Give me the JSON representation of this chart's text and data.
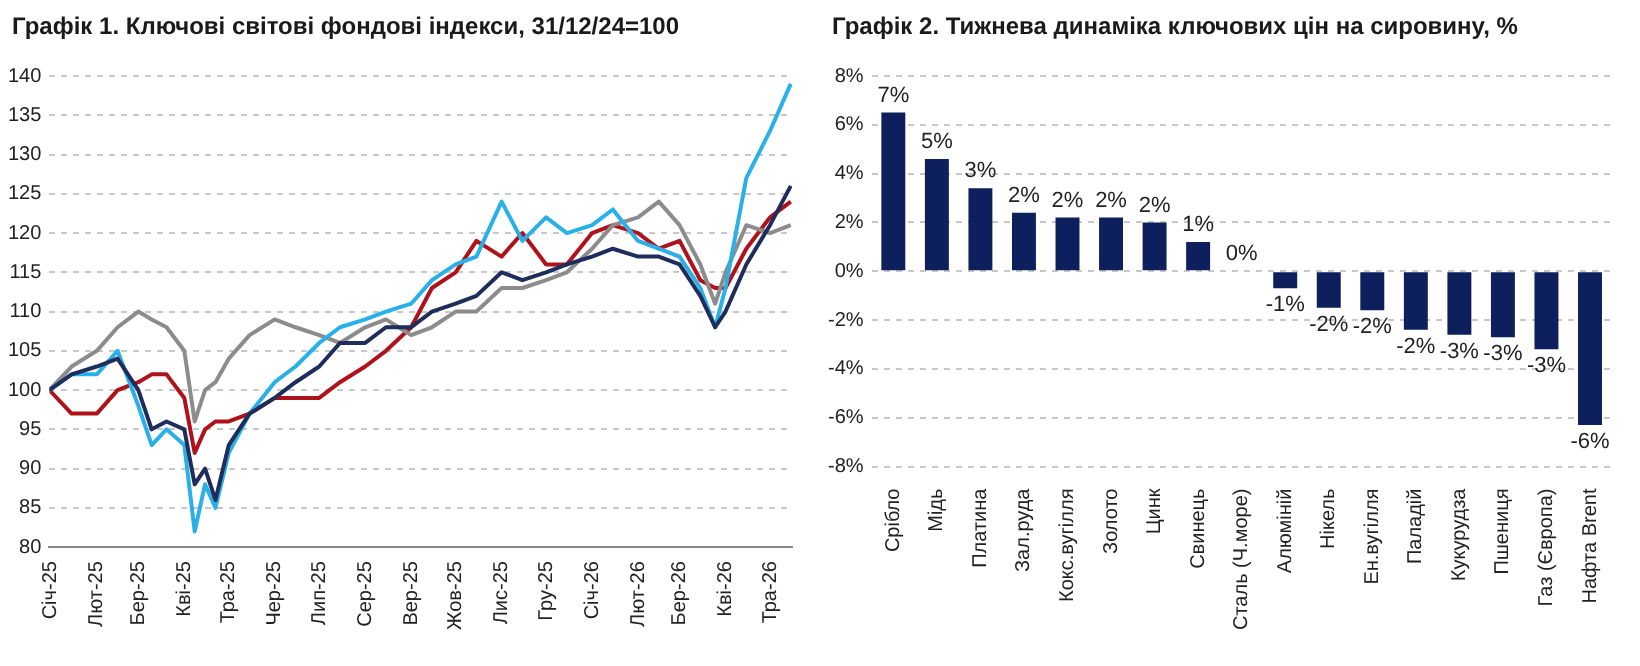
{
  "chart_data": [
    {
      "type": "line",
      "title": "Графік 1. Ключові світові фондові індекси, 31/12/24=100",
      "grid": "y",
      "xlim": [
        "2024-12-31",
        "2026-05-16"
      ],
      "ylim": [
        80,
        140
      ],
      "yticks": [
        80,
        85,
        90,
        95,
        100,
        105,
        110,
        115,
        120,
        125,
        130,
        135,
        140
      ],
      "xticks": [
        {
          "value": "2025-01-01",
          "label": "Січ-25"
        },
        {
          "value": "2025-02-01",
          "label": "Лют-25"
        },
        {
          "value": "2025-03-01",
          "label": "Бер-25"
        },
        {
          "value": "2025-04-01",
          "label": "Кві-25"
        },
        {
          "value": "2025-05-01",
          "label": "Тра-25"
        },
        {
          "value": "2025-06-01",
          "label": "Чер-25"
        },
        {
          "value": "2025-07-01",
          "label": "Лип-25"
        },
        {
          "value": "2025-08-01",
          "label": "Сер-25"
        },
        {
          "value": "2025-09-01",
          "label": "Вер-25"
        },
        {
          "value": "2025-10-01",
          "label": "Жов-25"
        },
        {
          "value": "2025-11-01",
          "label": "Лис-25"
        },
        {
          "value": "2025-12-01",
          "label": "Гру-25"
        },
        {
          "value": "2026-01-01",
          "label": "Січ-26"
        },
        {
          "value": "2026-02-01",
          "label": "Лют-26"
        },
        {
          "value": "2026-03-01",
          "label": "Бер-26"
        },
        {
          "value": "2026-04-01",
          "label": "Кві-26"
        },
        {
          "value": "2026-05-01",
          "label": "Тра-26"
        }
      ],
      "x": [
        "2024-12-31",
        "2025-01-15",
        "2025-02-01",
        "2025-02-15",
        "2025-03-01",
        "2025-03-10",
        "2025-03-20",
        "2025-04-01",
        "2025-04-08",
        "2025-04-15",
        "2025-04-22",
        "2025-05-01",
        "2025-05-15",
        "2025-06-01",
        "2025-06-15",
        "2025-07-01",
        "2025-07-15",
        "2025-08-01",
        "2025-08-15",
        "2025-09-01",
        "2025-09-15",
        "2025-10-01",
        "2025-10-15",
        "2025-11-01",
        "2025-11-15",
        "2025-12-01",
        "2025-12-15",
        "2026-01-01",
        "2026-01-15",
        "2026-02-01",
        "2026-02-15",
        "2026-03-01",
        "2026-03-15",
        "2026-03-25",
        "2026-04-01",
        "2026-04-15",
        "2026-05-01",
        "2026-05-15"
      ],
      "series": [
        {
          "color": "#1f2d5c",
          "values": [
            100,
            102,
            103,
            104,
            100,
            95,
            96,
            95,
            88,
            90,
            86,
            93,
            97,
            99,
            101,
            103,
            106,
            106,
            108,
            108,
            110,
            111,
            112,
            115,
            114,
            115,
            116,
            117,
            118,
            117,
            117,
            116,
            112,
            108,
            110,
            116,
            121,
            126
          ]
        },
        {
          "color": "#2ab0e8",
          "values": [
            100,
            102,
            102,
            105,
            98,
            93,
            95,
            93,
            82,
            88,
            85,
            92,
            97,
            101,
            103,
            106,
            108,
            109,
            110,
            111,
            114,
            116,
            117,
            124,
            119,
            122,
            120,
            121,
            123,
            119,
            118,
            117,
            113,
            108,
            113,
            127,
            133,
            139
          ]
        },
        {
          "color": "#8c8c8c",
          "values": [
            100,
            103,
            105,
            108,
            110,
            109,
            108,
            105,
            96,
            100,
            101,
            104,
            107,
            109,
            108,
            107,
            106,
            108,
            109,
            107,
            108,
            110,
            110,
            113,
            113,
            114,
            115,
            118,
            121,
            122,
            124,
            121,
            116,
            111,
            115,
            121,
            120,
            121
          ]
        },
        {
          "color": "#b0121b",
          "values": [
            100,
            97,
            97,
            100,
            101,
            102,
            102,
            99,
            92,
            95,
            96,
            96,
            97,
            99,
            99,
            99,
            101,
            103,
            105,
            108,
            113,
            115,
            119,
            117,
            120,
            116,
            116,
            120,
            121,
            120,
            118,
            119,
            114,
            113,
            113,
            118,
            122,
            124
          ]
        }
      ]
    },
    {
      "type": "bar",
      "title": "Графік 2. Тижнева динаміка ключових цін на сировину, %",
      "grid": "y",
      "color": "#0d1f5c",
      "ylim": [
        -8,
        8
      ],
      "yticks": [
        {
          "value": -8,
          "label": "-8%"
        },
        {
          "value": -6,
          "label": "-6%"
        },
        {
          "value": -4,
          "label": "-4%"
        },
        {
          "value": -2,
          "label": "-2%"
        },
        {
          "value": 0,
          "label": "0%"
        },
        {
          "value": 2,
          "label": "2%"
        },
        {
          "value": 4,
          "label": "4%"
        },
        {
          "value": 6,
          "label": "6%"
        },
        {
          "value": 8,
          "label": "8%"
        }
      ],
      "categories": [
        "Срібло",
        "Мідь",
        "Платина",
        "Зал.руда",
        "Кокс.вугілля",
        "Золото",
        "Цинк",
        "Свинець",
        "Сталь (Ч.море)",
        "Алюміній",
        "Нікель",
        "Ен.вугілля",
        "Паладій",
        "Кукурудза",
        "Пшениця",
        "Газ (Європа)",
        "Нафта Brent"
      ],
      "values": [
        6.5,
        4.6,
        3.4,
        2.4,
        2.2,
        2.2,
        2.0,
        1.2,
        0,
        -0.7,
        -1.5,
        -1.6,
        -2.4,
        -2.6,
        -2.7,
        -3.2,
        -6.3
      ],
      "value_labels": [
        "7%",
        "5%",
        "3%",
        "2%",
        "2%",
        "2%",
        "2%",
        "1%",
        "0%",
        "-1%",
        "-2%",
        "-2%",
        "-2%",
        "-3%",
        "-3%",
        "-3%",
        "-6%"
      ]
    }
  ]
}
